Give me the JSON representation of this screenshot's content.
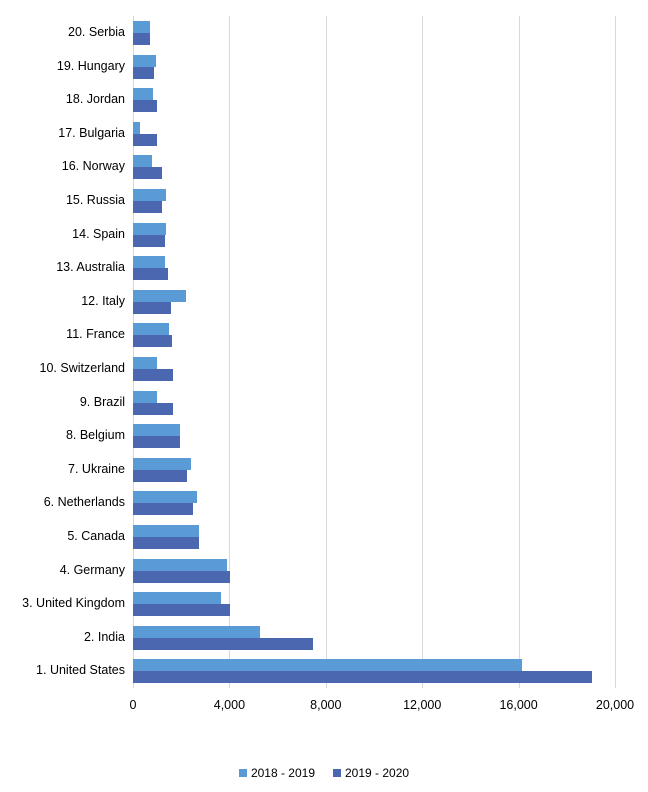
{
  "chart_data": {
    "type": "bar",
    "orientation": "horizontal",
    "title": "",
    "xlabel": "",
    "ylabel": "",
    "xlim": [
      0,
      20000
    ],
    "xticks": [
      "0",
      "4,000",
      "8,000",
      "12,000",
      "16,000",
      "20,000"
    ],
    "grid": true,
    "legend_position": "bottom",
    "categories": [
      "1. United States",
      "2. India",
      "3. United Kingdom",
      "4. Germany",
      "5. Canada",
      "6. Netherlands",
      "7. Ukraine",
      "8. Belgium",
      "9. Brazil",
      "10. Switzerland",
      "11. France",
      "12. Italy",
      "13. Australia",
      "14. Spain",
      "15. Russia",
      "16. Norway",
      "17. Bulgaria",
      "18. Jordan",
      "19. Hungary",
      "20. Serbia"
    ],
    "series": [
      {
        "name": "2018 - 2019",
        "color": "#5b9bd5",
        "values": [
          16130,
          5290,
          3670,
          3880,
          2730,
          2650,
          2390,
          1970,
          990,
          990,
          1500,
          2180,
          1330,
          1370,
          1370,
          770,
          270,
          820,
          950,
          720
        ]
      },
      {
        "name": "2019 - 2020",
        "color": "#4a67b0",
        "values": [
          19060,
          7460,
          4010,
          4010,
          2730,
          2480,
          2260,
          1970,
          1670,
          1670,
          1630,
          1590,
          1460,
          1330,
          1200,
          1200,
          990,
          990,
          860,
          720
        ]
      }
    ]
  }
}
